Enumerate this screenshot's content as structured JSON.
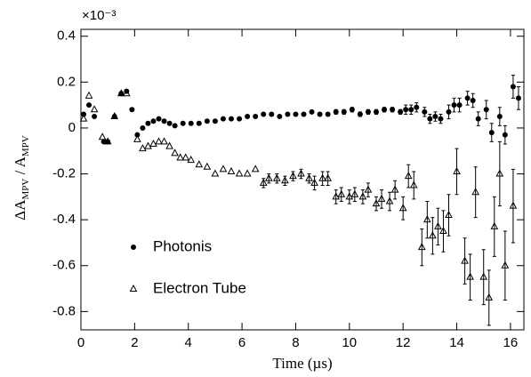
{
  "chart_data": {
    "type": "scatter",
    "xlabel": "Time (µs)",
    "ylabel": [
      "ΔA",
      "MPV",
      " / A",
      "MPV"
    ],
    "axis_multiplier": "×10⁻³",
    "xlim": [
      0,
      16.5
    ],
    "ylim": [
      -0.88,
      0.43
    ],
    "xticks": [
      0,
      2,
      4,
      6,
      8,
      10,
      12,
      14,
      16
    ],
    "yticks": [
      0.4,
      0.2,
      0,
      -0.2,
      -0.4,
      -0.6,
      -0.8
    ],
    "series": [
      {
        "name": "Photonis",
        "marker": "circle",
        "color": "#000000",
        "x": [
          0.1,
          0.3,
          0.5,
          0.85,
          1.0,
          1.25,
          1.5,
          1.7,
          1.9,
          2.1,
          2.3,
          2.5,
          2.7,
          2.9,
          3.1,
          3.3,
          3.5,
          3.8,
          4.1,
          4.4,
          4.7,
          5.0,
          5.3,
          5.6,
          5.9,
          6.2,
          6.5,
          6.8,
          7.1,
          7.4,
          7.7,
          8.0,
          8.3,
          8.6,
          8.9,
          9.2,
          9.5,
          9.8,
          10.1,
          10.4,
          10.7,
          11.0,
          11.3,
          11.6,
          11.9,
          12.1,
          12.3,
          12.5,
          12.8,
          13.0,
          13.2,
          13.4,
          13.7,
          13.9,
          14.1,
          14.4,
          14.6,
          14.8,
          15.1,
          15.3,
          15.6,
          15.8,
          16.1,
          16.3
        ],
        "values": [
          0.06,
          0.1,
          0.05,
          -0.06,
          -0.06,
          0.05,
          0.15,
          0.16,
          0.08,
          -0.03,
          0.0,
          0.02,
          0.03,
          0.04,
          0.03,
          0.02,
          0.01,
          0.02,
          0.02,
          0.02,
          0.03,
          0.03,
          0.04,
          0.04,
          0.04,
          0.05,
          0.05,
          0.06,
          0.06,
          0.05,
          0.06,
          0.06,
          0.06,
          0.07,
          0.06,
          0.06,
          0.07,
          0.07,
          0.08,
          0.06,
          0.07,
          0.07,
          0.08,
          0.08,
          0.07,
          0.08,
          0.08,
          0.09,
          0.07,
          0.04,
          0.05,
          0.04,
          0.07,
          0.1,
          0.1,
          0.13,
          0.12,
          0.04,
          0.08,
          -0.02,
          0.05,
          -0.03,
          0.18,
          0.13
        ],
        "errors": [
          0,
          0,
          0,
          0,
          0,
          0,
          0,
          0,
          0,
          0,
          0,
          0,
          0,
          0,
          0,
          0,
          0,
          0,
          0,
          0,
          0,
          0,
          0,
          0,
          0,
          0,
          0,
          0,
          0,
          0,
          0,
          0,
          0,
          0,
          0,
          0,
          0.01,
          0.01,
          0.01,
          0.01,
          0.01,
          0.01,
          0.01,
          0.01,
          0.01,
          0.02,
          0.02,
          0.02,
          0.02,
          0.02,
          0.02,
          0.02,
          0.03,
          0.03,
          0.03,
          0.03,
          0.03,
          0.03,
          0.04,
          0.04,
          0.04,
          0.04,
          0.05,
          0.05
        ]
      },
      {
        "name": "Electron Tube",
        "marker": "triangle",
        "color": "#000000",
        "x": [
          0.1,
          0.3,
          0.5,
          0.8,
          1.0,
          1.25,
          1.5,
          1.7,
          2.1,
          2.3,
          2.5,
          2.7,
          2.9,
          3.1,
          3.3,
          3.5,
          3.7,
          3.9,
          4.1,
          4.4,
          4.7,
          5.0,
          5.3,
          5.6,
          5.9,
          6.2,
          6.5,
          6.8,
          7.0,
          7.3,
          7.6,
          7.9,
          8.2,
          8.5,
          8.7,
          9.0,
          9.2,
          9.5,
          9.7,
          10.0,
          10.2,
          10.5,
          10.7,
          11.0,
          11.2,
          11.5,
          11.7,
          12.0,
          12.2,
          12.4,
          12.7,
          12.9,
          13.1,
          13.3,
          13.5,
          13.7,
          14.0,
          14.3,
          14.5,
          14.7,
          15.0,
          15.2,
          15.4,
          15.6,
          15.8,
          16.1
        ],
        "values": [
          0.04,
          0.14,
          0.08,
          -0.04,
          -0.06,
          0.05,
          0.15,
          0.15,
          -0.05,
          -0.09,
          -0.08,
          -0.07,
          -0.06,
          -0.06,
          -0.08,
          -0.11,
          -0.13,
          -0.13,
          -0.14,
          -0.16,
          -0.17,
          -0.2,
          -0.18,
          -0.19,
          -0.2,
          -0.2,
          -0.18,
          -0.24,
          -0.22,
          -0.22,
          -0.23,
          -0.21,
          -0.2,
          -0.22,
          -0.24,
          -0.22,
          -0.22,
          -0.3,
          -0.29,
          -0.3,
          -0.29,
          -0.3,
          -0.27,
          -0.33,
          -0.31,
          -0.32,
          -0.27,
          -0.35,
          -0.21,
          -0.25,
          -0.52,
          -0.4,
          -0.47,
          -0.43,
          -0.45,
          -0.38,
          -0.19,
          -0.58,
          -0.65,
          -0.28,
          -0.65,
          -0.74,
          -0.43,
          -0.2,
          -0.6,
          -0.34
        ],
        "errors": [
          0,
          0,
          0,
          0,
          0,
          0,
          0,
          0,
          0,
          0,
          0,
          0,
          0,
          0,
          0,
          0,
          0,
          0,
          0,
          0,
          0,
          0,
          0,
          0,
          0,
          0,
          0,
          0.02,
          0.02,
          0.02,
          0.02,
          0.02,
          0.02,
          0.02,
          0.03,
          0.03,
          0.03,
          0.03,
          0.03,
          0.03,
          0.03,
          0.03,
          0.03,
          0.03,
          0.04,
          0.04,
          0.04,
          0.05,
          0.05,
          0.06,
          0.08,
          0.08,
          0.08,
          0.08,
          0.09,
          0.09,
          0.1,
          0.1,
          0.1,
          0.11,
          0.12,
          0.12,
          0.13,
          0.14,
          0.15,
          0.16
        ]
      }
    ]
  }
}
